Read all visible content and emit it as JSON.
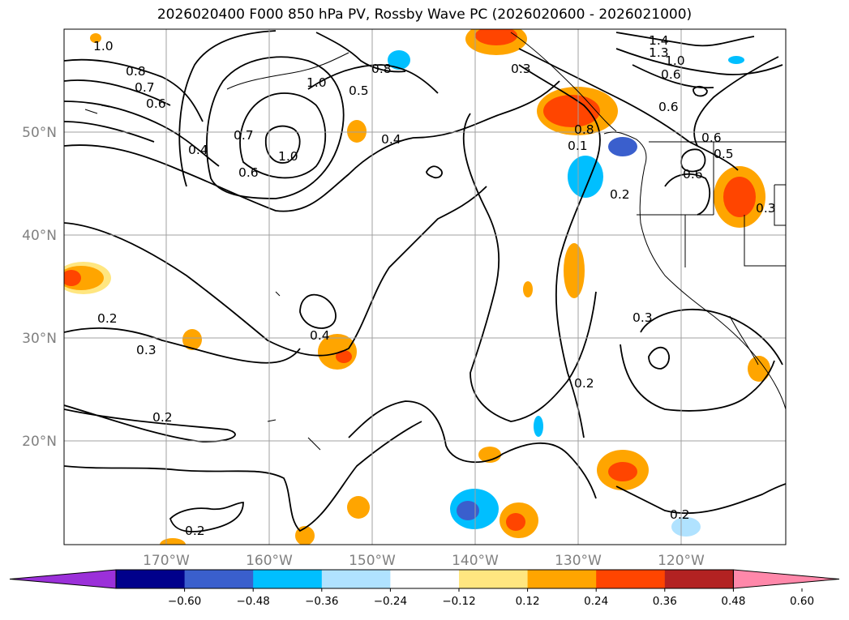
{
  "title": "2026020400 F000 850 hPa PV, Rossby Wave PC (2026020600 - 2026021000)",
  "axes": {
    "lat_ticks": [
      "50°N",
      "40°N",
      "30°N",
      "20°N"
    ],
    "lon_ticks": [
      "170°W",
      "160°W",
      "150°W",
      "140°W",
      "130°W",
      "120°W"
    ]
  },
  "colorbar": {
    "ticks": [
      "−0.60",
      "−0.48",
      "−0.36",
      "−0.24",
      "−0.12",
      "0.12",
      "0.24",
      "0.36",
      "0.48",
      "0.60"
    ],
    "colors": [
      "#9b30d9",
      "#00008b",
      "#3a5fcd",
      "#00bfff",
      "#b0e2ff",
      "#ffffff",
      "#ffe680",
      "#ffa500",
      "#ff4500",
      "#b22222",
      "#ff88aa"
    ]
  },
  "contour_labels": [
    {
      "text": "1.0"
    },
    {
      "text": "0.8"
    },
    {
      "text": "0.7"
    },
    {
      "text": "0.6"
    },
    {
      "text": "1.0"
    },
    {
      "text": "0.8"
    },
    {
      "text": "0.5"
    },
    {
      "text": "0.4"
    },
    {
      "text": "1.0"
    },
    {
      "text": "0.7"
    },
    {
      "text": "0.6"
    },
    {
      "text": "0.4"
    },
    {
      "text": "0.2"
    },
    {
      "text": "0.3"
    },
    {
      "text": "0.4"
    },
    {
      "text": "0.2"
    },
    {
      "text": "0.2"
    },
    {
      "text": "0.3"
    },
    {
      "text": "0.8"
    },
    {
      "text": "0.1"
    },
    {
      "text": "0.2"
    },
    {
      "text": "0.2"
    },
    {
      "text": "0.3"
    },
    {
      "text": "0.2"
    },
    {
      "text": "1.4"
    },
    {
      "text": "1.3"
    },
    {
      "text": "1.0"
    },
    {
      "text": "0.6"
    },
    {
      "text": "0.6"
    },
    {
      "text": "0.6"
    },
    {
      "text": "0.5"
    },
    {
      "text": "0.6"
    },
    {
      "text": "0.3"
    }
  ]
}
